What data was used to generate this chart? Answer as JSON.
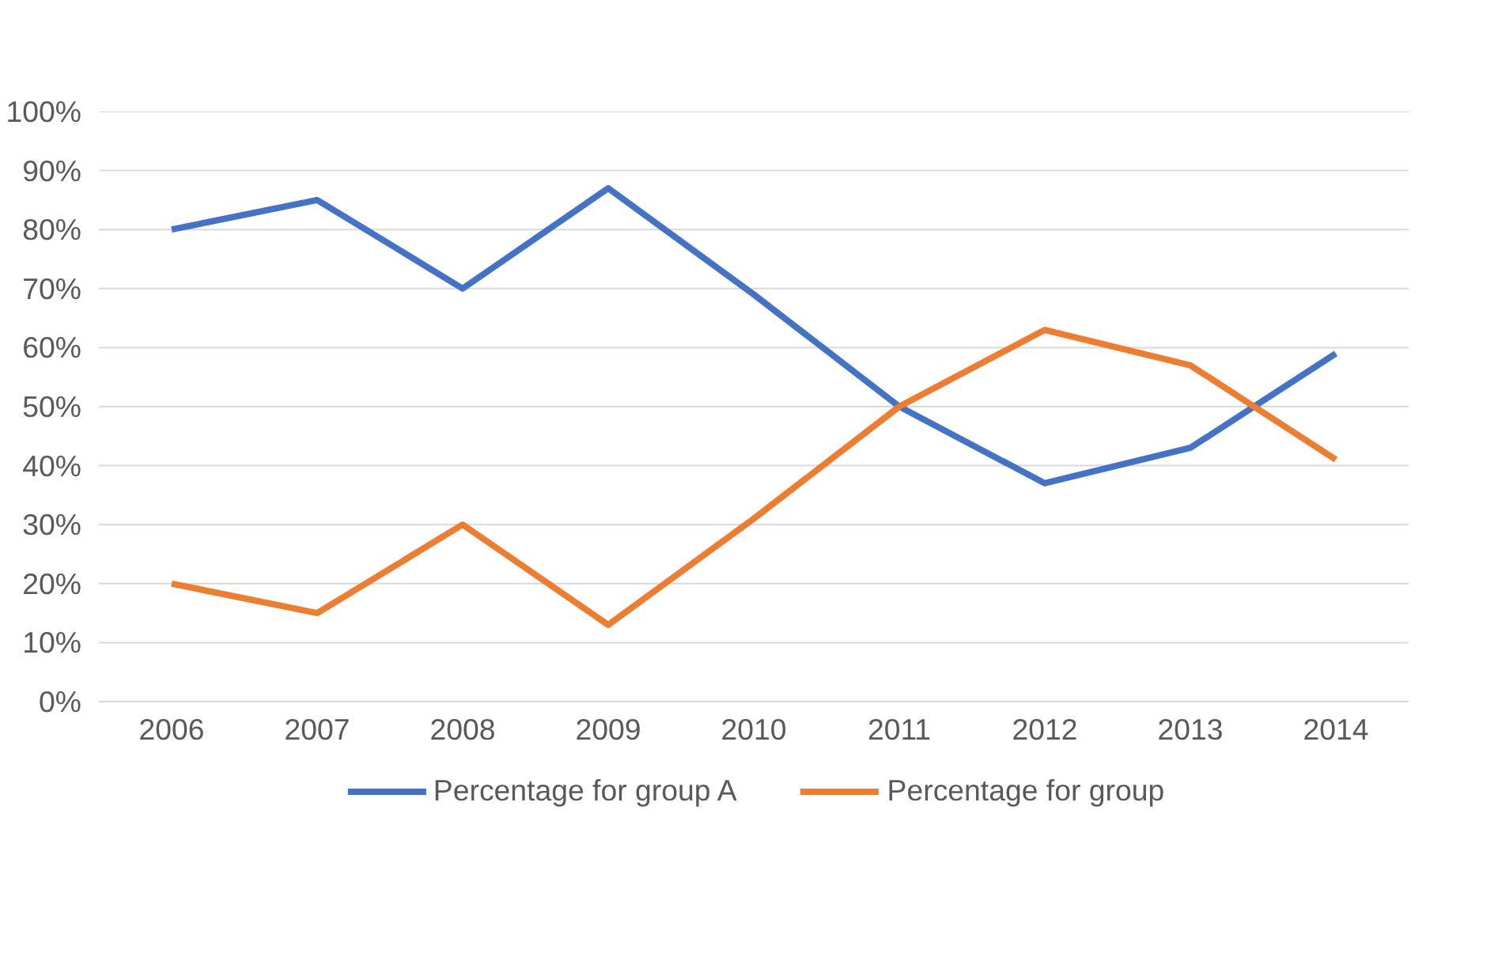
{
  "chart_data": {
    "type": "line",
    "categories": [
      "2006",
      "2007",
      "2008",
      "2009",
      "2010",
      "2011",
      "2012",
      "2013",
      "2014"
    ],
    "series": [
      {
        "name": "Percentage for group A",
        "color": "#4472c4",
        "values": [
          80,
          85,
          70,
          87,
          69,
          50,
          37,
          43,
          59
        ]
      },
      {
        "name": "Percentage for group",
        "color": "#ed7d31",
        "values": [
          20,
          15,
          30,
          13,
          31,
          50,
          63,
          57,
          41
        ]
      }
    ],
    "ylim": [
      0,
      100
    ],
    "yticks": [
      {
        "value": 0,
        "label": "0%"
      },
      {
        "value": 10,
        "label": "10%"
      },
      {
        "value": 20,
        "label": "20%"
      },
      {
        "value": 30,
        "label": "30%"
      },
      {
        "value": 40,
        "label": "40%"
      },
      {
        "value": 50,
        "label": "50%"
      },
      {
        "value": 60,
        "label": "60%"
      },
      {
        "value": 70,
        "label": "70%"
      },
      {
        "value": 80,
        "label": "80%"
      },
      {
        "value": 90,
        "label": "90%"
      },
      {
        "value": 100,
        "label": "100%"
      }
    ],
    "grid": "y",
    "legend": "bottom",
    "marker": "none",
    "line_style": "solid"
  }
}
